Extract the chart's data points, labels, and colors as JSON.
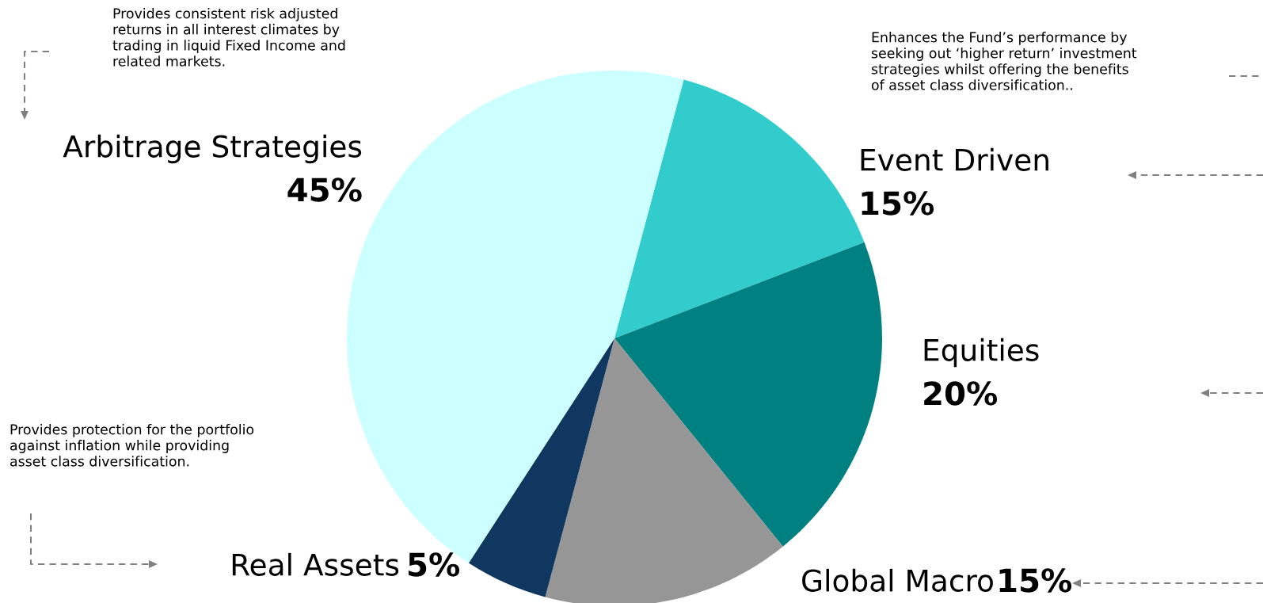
{
  "chart_data": {
    "type": "pie",
    "categories": [
      "Event Driven",
      "Equities",
      "Global Macro",
      "Real Assets",
      "Arbitrage Strategies"
    ],
    "values": [
      15,
      20,
      15,
      5,
      45
    ],
    "colors": [
      "#33cccc",
      "#008080",
      "#969696",
      "#0f3760",
      "#ccffff"
    ],
    "value_labels": [
      "15%",
      "20%",
      "15%",
      "5%",
      "45%"
    ],
    "annotations": [
      "Provides consistent risk adjusted\nreturns in all interest climates by\ntrading in liquid Fixed Income and\nrelated markets.",
      "Enhances the Fund’s performance by\nseeking out ‘higher return’ investment\nstrategies whilst offering the benefits\nof asset class diversification..",
      "Provides protection for the portfolio\nagainst inflation while providing\nasset class diversification."
    ]
  }
}
